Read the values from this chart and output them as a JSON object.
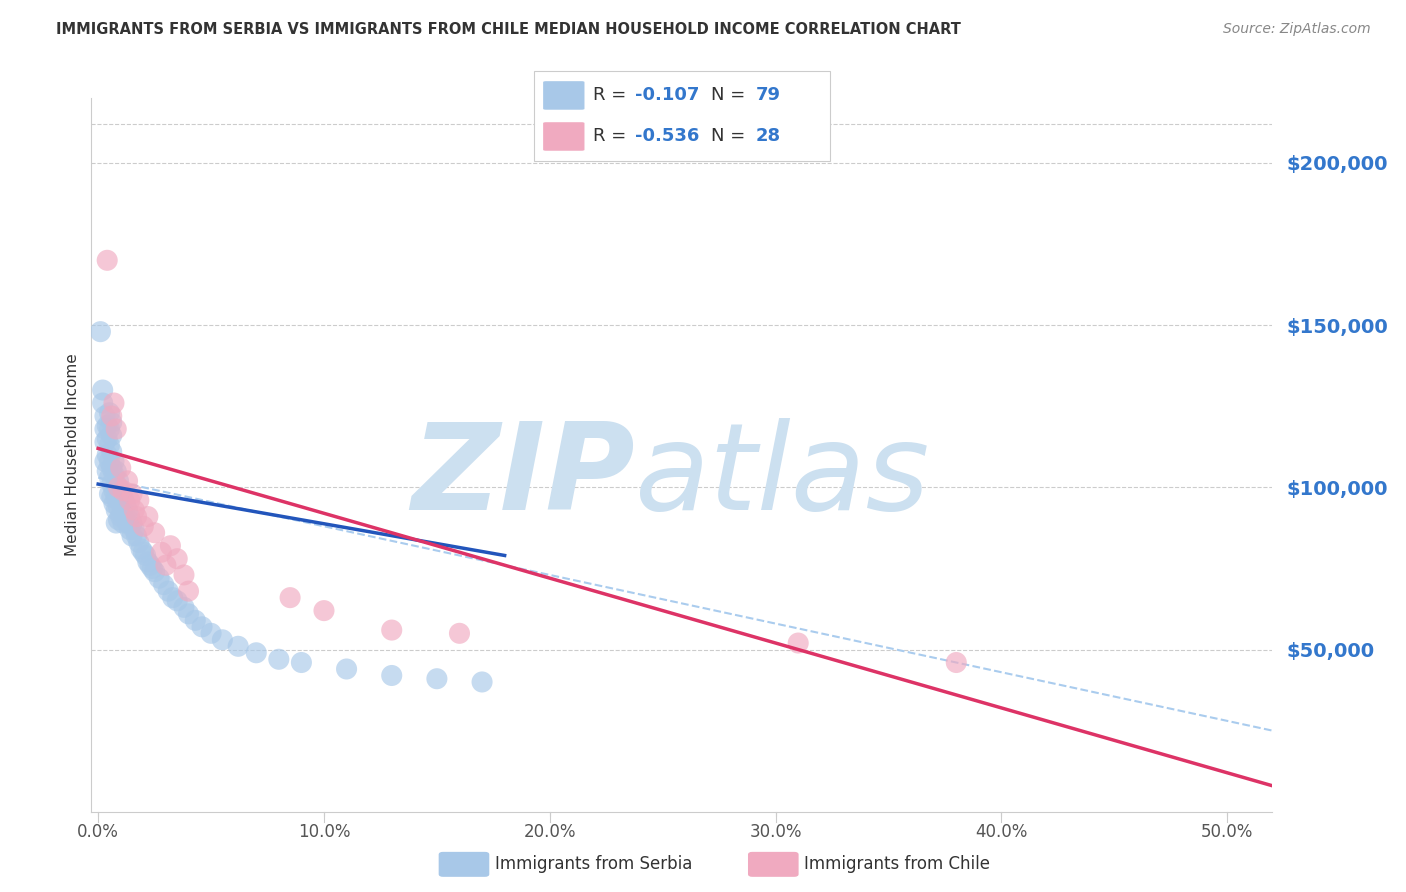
{
  "title": "IMMIGRANTS FROM SERBIA VS IMMIGRANTS FROM CHILE MEDIAN HOUSEHOLD INCOME CORRELATION CHART",
  "source": "Source: ZipAtlas.com",
  "ylabel": "Median Household Income",
  "xlabel_ticks": [
    "0.0%",
    "10.0%",
    "20.0%",
    "30.0%",
    "40.0%",
    "50.0%"
  ],
  "xlabel_vals": [
    0.0,
    0.1,
    0.2,
    0.3,
    0.4,
    0.5
  ],
  "ytick_labels": [
    "$50,000",
    "$100,000",
    "$150,000",
    "$200,000"
  ],
  "ytick_vals": [
    50000,
    100000,
    150000,
    200000
  ],
  "ylim": [
    0,
    220000
  ],
  "xlim": [
    -0.003,
    0.52
  ],
  "serbia_R": "-0.107",
  "serbia_N": "79",
  "chile_R": "-0.536",
  "chile_N": "28",
  "serbia_color": "#a8c8e8",
  "chile_color": "#f0aac0",
  "serbia_line_color": "#2255bb",
  "chile_line_color": "#dd3366",
  "dashed_line_color": "#aaccee",
  "legend_text_color": "#3377cc",
  "watermark_zip_color": "#cce0f0",
  "watermark_atlas_color": "#cce0f0",
  "background_color": "#ffffff",
  "grid_color": "#cccccc",
  "title_color": "#333333",
  "source_color": "#888888",
  "axis_label_color": "#333333",
  "tick_color": "#555555",
  "serbia_x": [
    0.001,
    0.002,
    0.002,
    0.003,
    0.003,
    0.003,
    0.003,
    0.004,
    0.004,
    0.004,
    0.004,
    0.005,
    0.005,
    0.005,
    0.005,
    0.005,
    0.005,
    0.006,
    0.006,
    0.006,
    0.006,
    0.006,
    0.006,
    0.007,
    0.007,
    0.007,
    0.007,
    0.008,
    0.008,
    0.008,
    0.008,
    0.008,
    0.009,
    0.009,
    0.009,
    0.009,
    0.01,
    0.01,
    0.01,
    0.011,
    0.011,
    0.011,
    0.012,
    0.012,
    0.013,
    0.013,
    0.014,
    0.014,
    0.015,
    0.015,
    0.016,
    0.017,
    0.018,
    0.019,
    0.02,
    0.021,
    0.022,
    0.023,
    0.024,
    0.025,
    0.027,
    0.029,
    0.031,
    0.033,
    0.035,
    0.038,
    0.04,
    0.043,
    0.046,
    0.05,
    0.055,
    0.062,
    0.07,
    0.08,
    0.09,
    0.11,
    0.13,
    0.15,
    0.17
  ],
  "serbia_y": [
    148000,
    130000,
    126000,
    122000,
    118000,
    114000,
    108000,
    119000,
    115000,
    110000,
    105000,
    123000,
    118000,
    113000,
    108000,
    103000,
    98000,
    120000,
    116000,
    111000,
    106000,
    101000,
    97000,
    108000,
    104000,
    99000,
    95000,
    105000,
    101000,
    97000,
    93000,
    89000,
    102000,
    98000,
    94000,
    90000,
    99000,
    95000,
    91000,
    97000,
    93000,
    89000,
    95000,
    91000,
    93000,
    89000,
    91000,
    87000,
    89000,
    85000,
    87000,
    85000,
    83000,
    81000,
    80000,
    79000,
    77000,
    76000,
    75000,
    74000,
    72000,
    70000,
    68000,
    66000,
    65000,
    63000,
    61000,
    59000,
    57000,
    55000,
    53000,
    51000,
    49000,
    47000,
    46000,
    44000,
    42000,
    41000,
    40000
  ],
  "chile_x": [
    0.004,
    0.006,
    0.007,
    0.008,
    0.009,
    0.01,
    0.011,
    0.013,
    0.014,
    0.015,
    0.016,
    0.017,
    0.018,
    0.02,
    0.022,
    0.025,
    0.028,
    0.03,
    0.032,
    0.035,
    0.038,
    0.04,
    0.085,
    0.1,
    0.13,
    0.16,
    0.31,
    0.38
  ],
  "chile_y": [
    170000,
    122000,
    126000,
    118000,
    100000,
    106000,
    99000,
    102000,
    96000,
    98000,
    93000,
    91000,
    96000,
    88000,
    91000,
    86000,
    80000,
    76000,
    82000,
    78000,
    73000,
    68000,
    66000,
    62000,
    56000,
    55000,
    52000,
    46000
  ],
  "serbia_trend_x": [
    0.0,
    0.18
  ],
  "serbia_trend_y": [
    101000,
    79000
  ],
  "chile_trend_x": [
    0.0,
    0.52
  ],
  "chile_trend_y": [
    112000,
    8000
  ],
  "dashed_trend_x": [
    0.0,
    0.52
  ],
  "dashed_trend_y": [
    103000,
    25000
  ]
}
